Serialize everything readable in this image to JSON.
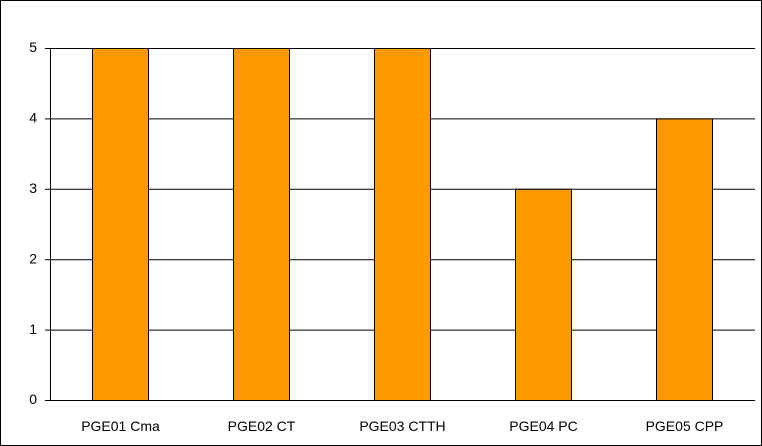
{
  "chart_data": {
    "type": "bar",
    "categories": [
      "PGE01 Cma",
      "PGE02 CT",
      "PGE03 CTTH",
      "PGE04 PC",
      "PGE05 CPP"
    ],
    "values": [
      5,
      5,
      5,
      3,
      4
    ],
    "color": "#ff9900",
    "ylim": [
      0,
      5
    ],
    "yticks": [
      0,
      1,
      2,
      3,
      4,
      5
    ],
    "grid": true
  }
}
